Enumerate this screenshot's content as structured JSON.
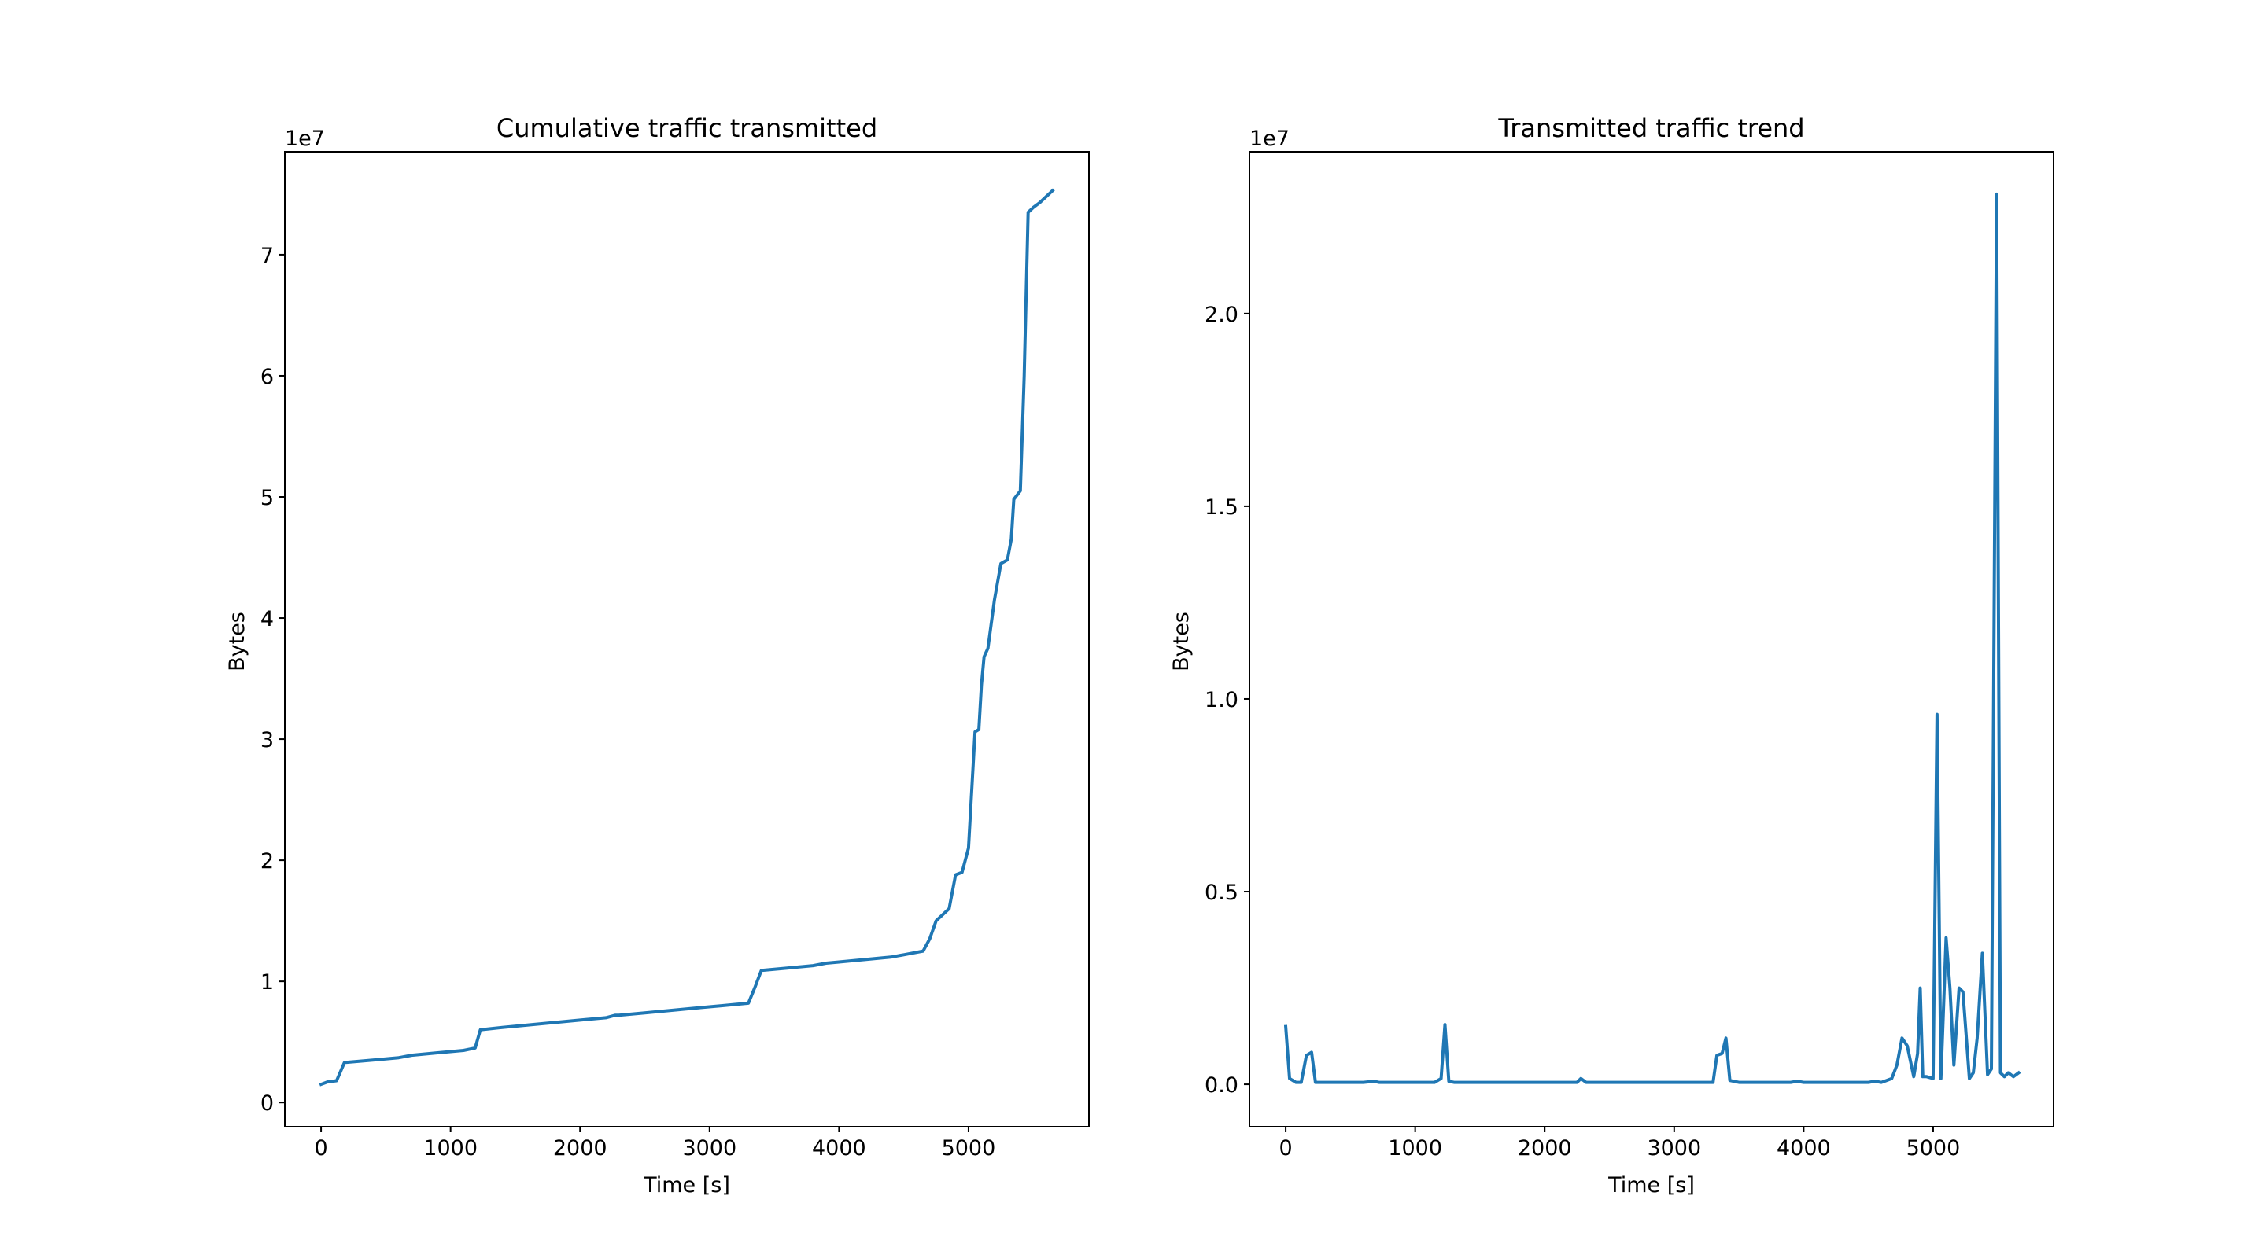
{
  "colors": {
    "line": "#1f77b4",
    "axes": "#000000",
    "background": "#ffffff"
  },
  "chart_data": [
    {
      "type": "line",
      "title": "Cumulative traffic transmitted",
      "xlabel": "Time [s]",
      "ylabel": "Bytes",
      "y_offset_label": "1e7",
      "y_scale": 10000000,
      "xlim": [
        -280,
        5930
      ],
      "ylim": [
        -2000000,
        78500000
      ],
      "grid": false,
      "x_ticks": [
        0,
        1000,
        2000,
        3000,
        4000,
        5000
      ],
      "x_tick_labels": [
        "0",
        "1000",
        "2000",
        "3000",
        "4000",
        "5000"
      ],
      "y_ticks": [
        0,
        10000000,
        20000000,
        30000000,
        40000000,
        50000000,
        60000000,
        70000000
      ],
      "y_tick_labels": [
        "0",
        "1",
        "2",
        "3",
        "4",
        "5",
        "6",
        "7"
      ],
      "series": [
        {
          "x": [
            0,
            50,
            120,
            180,
            400,
            600,
            700,
            900,
            1100,
            1190,
            1230,
            1400,
            1600,
            1800,
            2000,
            2200,
            2270,
            2300,
            2500,
            2700,
            2900,
            3100,
            3300,
            3350,
            3400,
            3600,
            3800,
            3900,
            4000,
            4200,
            4400,
            4500,
            4600,
            4650,
            4700,
            4750,
            4800,
            4850,
            4900,
            4950,
            5000,
            5050,
            5080,
            5100,
            5120,
            5150,
            5200,
            5250,
            5300,
            5330,
            5350,
            5400,
            5430,
            5460,
            5490,
            5500,
            5550,
            5600,
            5650
          ],
          "y": [
            1500000,
            1700000,
            1800000,
            3300000,
            3500000,
            3700000,
            3900000,
            4100000,
            4300000,
            4500000,
            6000000,
            6200000,
            6400000,
            6600000,
            6800000,
            7000000,
            7200000,
            7200000,
            7400000,
            7600000,
            7800000,
            8000000,
            8200000,
            9500000,
            10900000,
            11100000,
            11300000,
            11500000,
            11600000,
            11800000,
            12000000,
            12200000,
            12400000,
            12500000,
            13500000,
            15000000,
            15500000,
            16000000,
            18800000,
            19000000,
            21000000,
            30600000,
            30800000,
            34500000,
            36800000,
            37500000,
            41500000,
            44500000,
            44800000,
            46500000,
            49800000,
            50500000,
            60000000,
            73500000,
            73800000,
            73900000,
            74300000,
            74800000,
            75300000
          ]
        }
      ]
    },
    {
      "type": "line",
      "title": "Transmitted traffic trend",
      "xlabel": "Time [s]",
      "ylabel": "Bytes",
      "y_offset_label": "1e7",
      "y_scale": 10000000,
      "xlim": [
        -280,
        5930
      ],
      "ylim": [
        -1100000,
        24200000
      ],
      "grid": false,
      "x_ticks": [
        0,
        1000,
        2000,
        3000,
        4000,
        5000
      ],
      "x_tick_labels": [
        "0",
        "1000",
        "2000",
        "3000",
        "4000",
        "5000"
      ],
      "y_ticks": [
        0,
        5000000,
        10000000,
        15000000,
        20000000
      ],
      "y_tick_labels": [
        "0.0",
        "0.5",
        "1.0",
        "1.5",
        "2.0"
      ],
      "series": [
        {
          "x": [
            0,
            30,
            80,
            120,
            160,
            200,
            230,
            300,
            400,
            500,
            600,
            680,
            720,
            800,
            900,
            1000,
            1100,
            1150,
            1200,
            1230,
            1260,
            1300,
            1400,
            1500,
            1600,
            1700,
            1800,
            1900,
            2000,
            2100,
            2200,
            2250,
            2280,
            2320,
            2400,
            2600,
            2800,
            3000,
            3200,
            3300,
            3330,
            3370,
            3400,
            3430,
            3500,
            3700,
            3900,
            3950,
            4000,
            4200,
            4400,
            4500,
            4550,
            4600,
            4640,
            4680,
            4720,
            4760,
            4800,
            4850,
            4880,
            4900,
            4920,
            4950,
            5000,
            5030,
            5060,
            5100,
            5130,
            5160,
            5200,
            5230,
            5280,
            5310,
            5340,
            5380,
            5420,
            5450,
            5490,
            5520,
            5550,
            5580,
            5620,
            5660
          ],
          "y": [
            1500000,
            150000,
            50000,
            50000,
            750000,
            830000,
            50000,
            50000,
            50000,
            50000,
            50000,
            80000,
            50000,
            50000,
            50000,
            50000,
            50000,
            50000,
            150000,
            1550000,
            80000,
            50000,
            50000,
            50000,
            50000,
            50000,
            50000,
            50000,
            50000,
            50000,
            50000,
            50000,
            150000,
            50000,
            50000,
            50000,
            50000,
            50000,
            50000,
            50000,
            750000,
            800000,
            1200000,
            100000,
            50000,
            50000,
            50000,
            80000,
            50000,
            50000,
            50000,
            50000,
            80000,
            50000,
            100000,
            150000,
            500000,
            1200000,
            1000000,
            200000,
            800000,
            2500000,
            200000,
            200000,
            150000,
            9600000,
            150000,
            3800000,
            2500000,
            500000,
            2500000,
            2400000,
            150000,
            300000,
            1200000,
            3400000,
            250000,
            400000,
            23100000,
            300000,
            200000,
            300000,
            200000,
            300000
          ]
        }
      ]
    }
  ]
}
